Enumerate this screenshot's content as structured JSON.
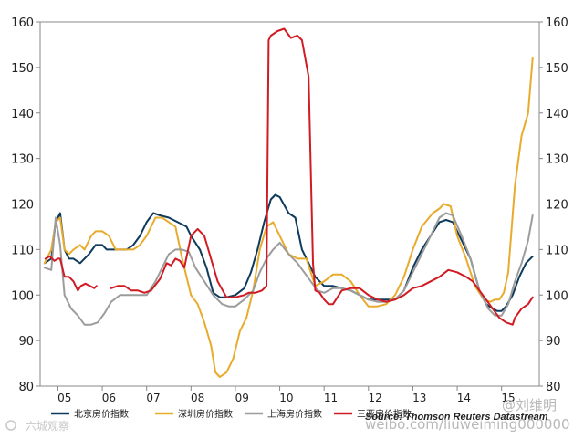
{
  "chart_data": {
    "type": "line",
    "y_ticks": [
      "80",
      "90",
      "100",
      "110",
      "120",
      "130",
      "140",
      "150",
      "160"
    ],
    "x_ticks": [
      "05",
      "06",
      "07",
      "08",
      "09",
      "10",
      "11",
      "12",
      "13",
      "14",
      "15"
    ],
    "ylim": [
      80,
      160
    ],
    "xlim": [
      2004.6,
      2015.85
    ],
    "grid": false,
    "legend_position": "bottom",
    "source": "Source: Thomson Reuters Datastream",
    "watermark_left": "六城观察",
    "watermark_right_handle": "@刘维明",
    "watermark_right_url": "weibo.com/liuweiming000000",
    "series": [
      {
        "name": "北京房价指数",
        "color": "#0e3a5c",
        "x": [
          2004.7,
          2004.85,
          2004.95,
          2005.05,
          2005.15,
          2005.25,
          2005.35,
          2005.5,
          2005.6,
          2005.7,
          2005.85,
          2006.0,
          2006.1,
          2006.25,
          2006.4,
          2006.55,
          2006.7,
          2006.85,
          2007.0,
          2007.15,
          2007.3,
          2007.5,
          2007.7,
          2007.9,
          2008.0,
          2008.2,
          2008.35,
          2008.5,
          2008.65,
          2008.8,
          2009.0,
          2009.2,
          2009.35,
          2009.5,
          2009.65,
          2009.8,
          2009.9,
          2010.0,
          2010.2,
          2010.35,
          2010.5,
          2010.65,
          2010.8,
          2011.0,
          2011.2,
          2011.4,
          2011.6,
          2011.8,
          2012.0,
          2012.2,
          2012.4,
          2012.6,
          2012.8,
          2013.0,
          2013.2,
          2013.4,
          2013.6,
          2013.75,
          2013.9,
          2014.1,
          2014.3,
          2014.5,
          2014.65,
          2014.8,
          2014.9,
          2015.0,
          2015.1,
          2015.25,
          2015.4,
          2015.55,
          2015.7
        ],
        "y": [
          107,
          108,
          116,
          118,
          110,
          108,
          108,
          107,
          108,
          109,
          111,
          111,
          110,
          110,
          110,
          110,
          111,
          113,
          116,
          118,
          117.5,
          117,
          116,
          115,
          113,
          110,
          106,
          100.5,
          99.5,
          99.5,
          100,
          101.5,
          105,
          110,
          116,
          121,
          122,
          121.5,
          118,
          117,
          110,
          107,
          104,
          102,
          102,
          101.5,
          101,
          100,
          99,
          99,
          99,
          99,
          101,
          106,
          110,
          113,
          116,
          116.5,
          116,
          112,
          108,
          101,
          98,
          97,
          96.5,
          96.5,
          97.5,
          100,
          104,
          107,
          108.5
        ]
      },
      {
        "name": "深圳房价指数",
        "color": "#e8ab2c",
        "x": [
          2004.7,
          2004.85,
          2004.95,
          2005.05,
          2005.15,
          2005.25,
          2005.35,
          2005.5,
          2005.6,
          2005.75,
          2005.85,
          2006.0,
          2006.15,
          2006.3,
          2006.5,
          2006.7,
          2006.85,
          2007.0,
          2007.1,
          2007.2,
          2007.35,
          2007.5,
          2007.65,
          2007.8,
          2008.0,
          2008.15,
          2008.3,
          2008.45,
          2008.55,
          2008.65,
          2008.8,
          2008.95,
          2009.1,
          2009.25,
          2009.4,
          2009.55,
          2009.7,
          2009.85,
          2010.0,
          2010.2,
          2010.4,
          2010.6,
          2010.8,
          2011.0,
          2011.2,
          2011.4,
          2011.6,
          2011.8,
          2012.0,
          2012.2,
          2012.4,
          2012.6,
          2012.8,
          2013.0,
          2013.2,
          2013.45,
          2013.6,
          2013.7,
          2013.85,
          2014.0,
          2014.2,
          2014.4,
          2014.6,
          2014.75,
          2014.85,
          2014.95,
          2015.05,
          2015.15,
          2015.3,
          2015.45,
          2015.6,
          2015.7
        ],
        "y": [
          107,
          110,
          116,
          117,
          110,
          109,
          110,
          111,
          110,
          113,
          114,
          114,
          113,
          110,
          110,
          110,
          111,
          113,
          115,
          117,
          117,
          116,
          115,
          108,
          100,
          98,
          94,
          89,
          83,
          82,
          83,
          86,
          92,
          95,
          101,
          110,
          115,
          116,
          113,
          109,
          108,
          108,
          102,
          103,
          104.5,
          104.5,
          103,
          100,
          97.5,
          97.5,
          98,
          100,
          104,
          110,
          115,
          118,
          119,
          120,
          119.5,
          113,
          108,
          102,
          99,
          98.5,
          99,
          99,
          100.5,
          105,
          124,
          135,
          140,
          152
        ]
      },
      {
        "name": "上海房价指数",
        "color": "#9c9c9c",
        "x": [
          2004.7,
          2004.85,
          2004.95,
          2005.05,
          2005.15,
          2005.3,
          2005.45,
          2005.6,
          2005.75,
          2005.9,
          2006.05,
          2006.2,
          2006.4,
          2006.6,
          2006.8,
          2007.0,
          2007.2,
          2007.35,
          2007.5,
          2007.65,
          2007.8,
          2007.95,
          2008.1,
          2008.3,
          2008.5,
          2008.7,
          2008.85,
          2009.0,
          2009.2,
          2009.4,
          2009.55,
          2009.7,
          2009.85,
          2010.0,
          2010.2,
          2010.4,
          2010.55,
          2010.7,
          2010.85,
          2011.0,
          2011.2,
          2011.4,
          2011.6,
          2011.8,
          2012.0,
          2012.2,
          2012.4,
          2012.6,
          2012.8,
          2013.0,
          2013.2,
          2013.4,
          2013.6,
          2013.75,
          2013.9,
          2014.1,
          2014.3,
          2014.5,
          2014.7,
          2014.85,
          2015.0,
          2015.15,
          2015.3,
          2015.45,
          2015.6,
          2015.7
        ],
        "y": [
          106,
          105.5,
          117,
          111,
          100,
          97,
          95.5,
          93.5,
          93.5,
          94,
          96,
          98.5,
          100,
          100,
          100,
          100,
          103,
          106,
          109,
          110,
          110,
          109.5,
          106,
          103,
          100,
          98,
          97.5,
          97.5,
          99,
          101,
          105,
          108,
          110,
          111.5,
          109,
          107,
          105,
          103,
          101,
          100.5,
          101.5,
          101.5,
          101,
          100,
          99,
          98.5,
          98.5,
          99,
          101,
          105,
          109,
          113,
          117,
          118,
          117.5,
          113,
          108,
          101,
          97,
          95.5,
          95.5,
          98,
          103,
          107,
          112,
          117.5
        ]
      },
      {
        "name": "三亚房价指数",
        "color": "#d11a22",
        "x": [
          2004.72,
          2004.82,
          2004.92,
          2005.0,
          2005.05,
          2005.15,
          2005.25,
          2005.35,
          2005.45,
          2005.52,
          2005.62,
          2005.72,
          2005.82,
          2005.87,
          null,
          2006.2,
          2006.35,
          2006.5,
          2006.65,
          2006.8,
          2006.95,
          2007.1,
          2007.3,
          2007.45,
          2007.55,
          2007.65,
          2007.75,
          2007.85,
          2008.0,
          2008.15,
          2008.3,
          2008.45,
          2008.6,
          2008.8,
          2009.0,
          2009.2,
          2009.3,
          2009.45,
          2009.6,
          2009.7,
          2009.75,
          2009.8,
          2009.95,
          2010.1,
          2010.25,
          2010.4,
          2010.5,
          2010.65,
          2010.75,
          2010.8,
          2010.9,
          2011.0,
          2011.1,
          2011.2,
          2011.4,
          2011.6,
          2011.8,
          2012.0,
          2012.2,
          2012.4,
          2012.6,
          2012.8,
          2013.0,
          2013.2,
          2013.4,
          2013.6,
          2013.8,
          2014.0,
          2014.2,
          2014.35,
          2014.5,
          2014.65,
          2014.8,
          2014.95,
          2015.1,
          2015.25,
          2015.3,
          2015.45,
          2015.6,
          2015.7
        ],
        "y": [
          108,
          108.5,
          107.5,
          108,
          108,
          104,
          104,
          103,
          101,
          102,
          102.5,
          102,
          101.5,
          102,
          null,
          101.5,
          102,
          102,
          101,
          101,
          100.5,
          101,
          103.5,
          107,
          106.5,
          108,
          107.5,
          106,
          113,
          114.5,
          113,
          108,
          103,
          99.5,
          99.5,
          100,
          100.5,
          100.5,
          101,
          102,
          156,
          157,
          158,
          158.5,
          156.5,
          157,
          156,
          148,
          107,
          101,
          100.5,
          99,
          98,
          98,
          101,
          101.5,
          101.5,
          100,
          99,
          98.5,
          99,
          100,
          101.5,
          102,
          103,
          104,
          105.5,
          105,
          104,
          103,
          101,
          99,
          97,
          95,
          94,
          93.5,
          95,
          97,
          98,
          99.5
        ]
      }
    ]
  }
}
